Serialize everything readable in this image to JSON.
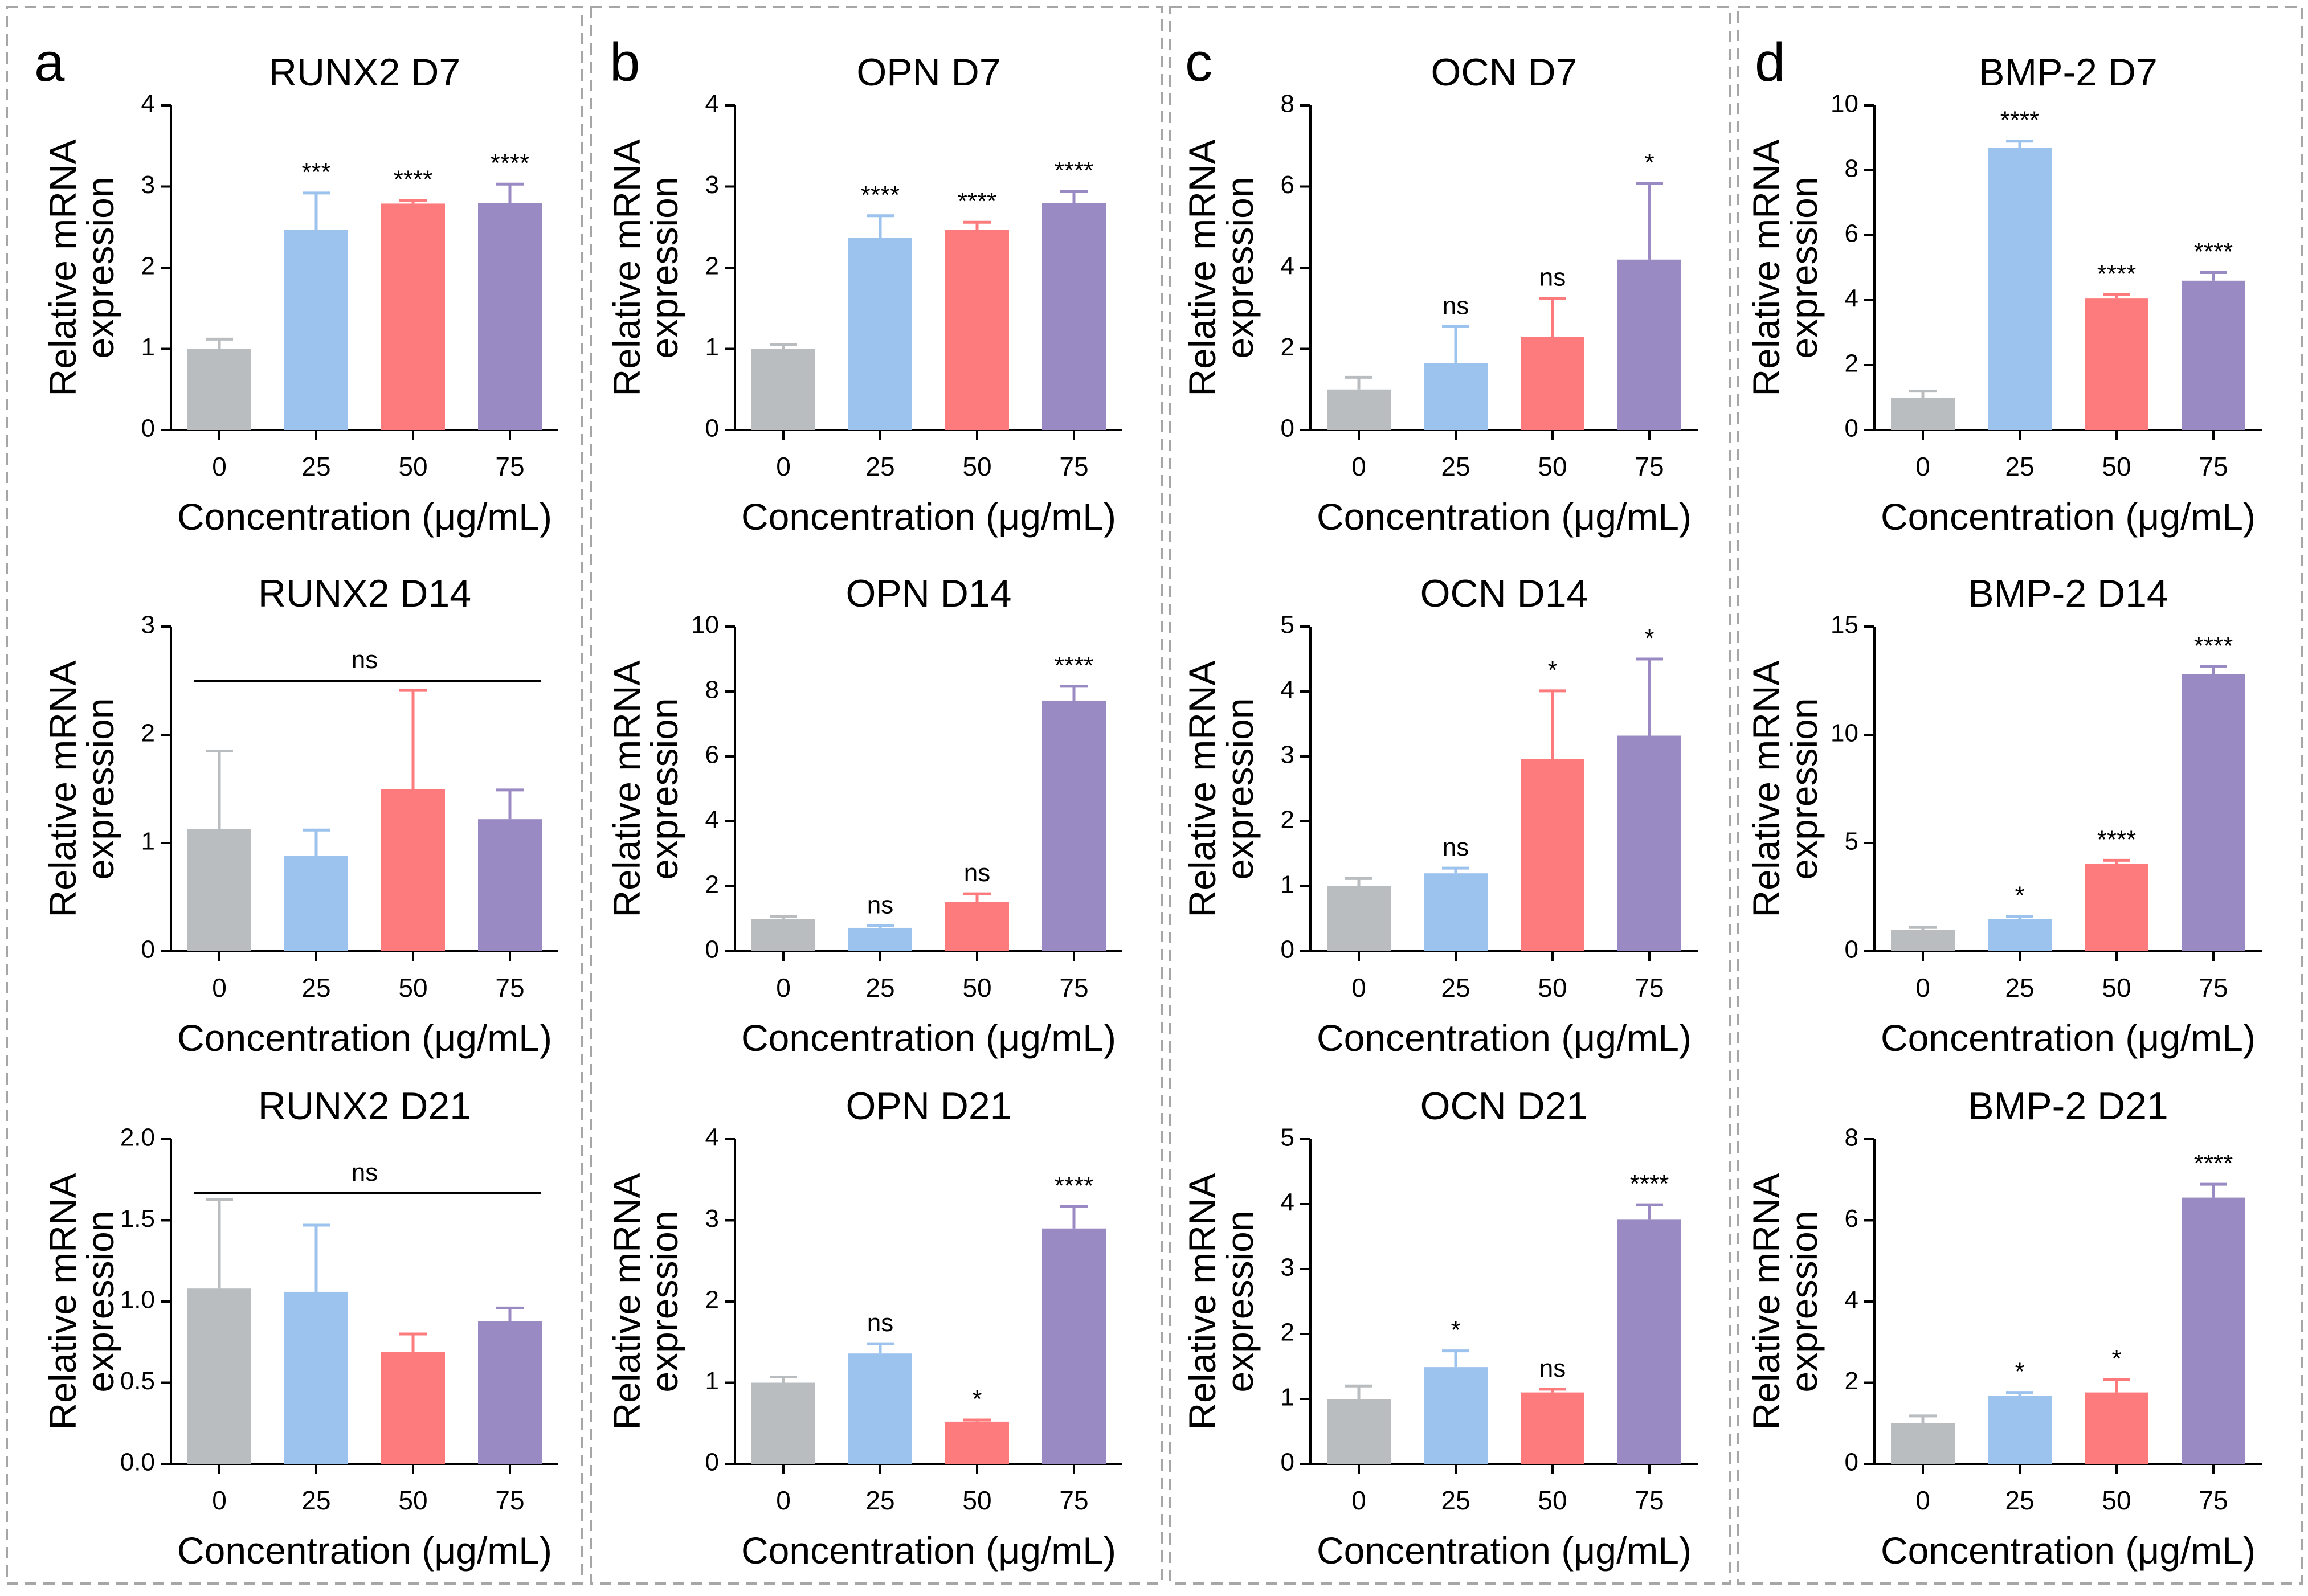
{
  "panels": [
    {
      "letter": "a"
    },
    {
      "letter": "b"
    },
    {
      "letter": "c"
    },
    {
      "letter": "d"
    }
  ],
  "colors": {
    "g0": "#babdbf",
    "g25": "#9cc2ee",
    "g50": "#fd7b7c",
    "g75": "#9a8ac3"
  },
  "chart_data": [
    {
      "type": "bar",
      "title": "RUNX2 D7",
      "categories": [
        "0",
        "25",
        "50",
        "75"
      ],
      "values": [
        1.0,
        2.47,
        2.79,
        2.8
      ],
      "errors": [
        0.12,
        0.45,
        0.04,
        0.23
      ],
      "sig": [
        "",
        "***",
        "****",
        "****"
      ],
      "ylim": [
        0,
        4
      ],
      "yticks": [
        "0",
        "1",
        "2",
        "3",
        "4"
      ],
      "xlabel": "Concentration (μg/mL)",
      "ylabel": [
        "Relative mRNA",
        "expression"
      ]
    },
    {
      "type": "bar",
      "title": "RUNX2 D14",
      "categories": [
        "0",
        "25",
        "50",
        "75"
      ],
      "values": [
        1.13,
        0.88,
        1.5,
        1.22
      ],
      "errors": [
        0.72,
        0.24,
        0.91,
        0.27
      ],
      "sig": [
        "",
        "",
        "",
        ""
      ],
      "bracket": "ns",
      "ylim": [
        0,
        3
      ],
      "yticks": [
        "0",
        "1",
        "2",
        "3"
      ],
      "xlabel": "Concentration (μg/mL)",
      "ylabel": [
        "Relative mRNA",
        "expression"
      ]
    },
    {
      "type": "bar",
      "title": "RUNX2 D21",
      "categories": [
        "0",
        "25",
        "50",
        "75"
      ],
      "values": [
        1.08,
        1.06,
        0.69,
        0.88
      ],
      "errors": [
        0.55,
        0.41,
        0.11,
        0.08
      ],
      "sig": [
        "",
        "",
        "",
        ""
      ],
      "bracket": "ns",
      "ylim": [
        0,
        2
      ],
      "yticks": [
        "0.0",
        "0.5",
        "1.0",
        "1.5",
        "2.0"
      ],
      "xlabel": "Concentration (μg/mL)",
      "ylabel": [
        "Relative mRNA",
        "expression"
      ]
    },
    {
      "type": "bar",
      "title": "OPN D7",
      "categories": [
        "0",
        "25",
        "50",
        "75"
      ],
      "values": [
        1.0,
        2.37,
        2.47,
        2.8
      ],
      "errors": [
        0.05,
        0.27,
        0.09,
        0.14
      ],
      "sig": [
        "",
        "****",
        "****",
        "****"
      ],
      "ylim": [
        0,
        4
      ],
      "yticks": [
        "0",
        "1",
        "2",
        "3",
        "4"
      ],
      "xlabel": "Concentration (μg/mL)",
      "ylabel": [
        "Relative mRNA",
        "expression"
      ]
    },
    {
      "type": "bar",
      "title": "OPN D14",
      "categories": [
        "0",
        "25",
        "50",
        "75"
      ],
      "values": [
        1.0,
        0.72,
        1.52,
        7.72
      ],
      "errors": [
        0.07,
        0.06,
        0.25,
        0.44
      ],
      "sig": [
        "",
        "ns",
        "ns",
        "****"
      ],
      "ylim": [
        0,
        10
      ],
      "yticks": [
        "0",
        "2",
        "4",
        "6",
        "8",
        "10"
      ],
      "xlabel": "Concentration (μg/mL)",
      "ylabel": [
        "Relative mRNA",
        "expression"
      ]
    },
    {
      "type": "bar",
      "title": "OPN D21",
      "categories": [
        "0",
        "25",
        "50",
        "75"
      ],
      "values": [
        1.0,
        1.36,
        0.52,
        2.9
      ],
      "errors": [
        0.07,
        0.12,
        0.02,
        0.27
      ],
      "sig": [
        "",
        "ns",
        "*",
        "****"
      ],
      "ylim": [
        0,
        4
      ],
      "yticks": [
        "0",
        "1",
        "2",
        "3",
        "4"
      ],
      "xlabel": "Concentration (μg/mL)",
      "ylabel": [
        "Relative mRNA",
        "expression"
      ]
    },
    {
      "type": "bar",
      "title": "OCN D7",
      "categories": [
        "0",
        "25",
        "50",
        "75"
      ],
      "values": [
        1.0,
        1.65,
        2.3,
        4.2
      ],
      "errors": [
        0.3,
        0.9,
        0.95,
        1.88
      ],
      "sig": [
        "",
        "ns",
        "ns",
        "*"
      ],
      "ylim": [
        0,
        8
      ],
      "yticks": [
        "0",
        "2",
        "4",
        "6",
        "8"
      ],
      "xlabel": "Concentration (μg/mL)",
      "ylabel": [
        "Relative mRNA",
        "expression"
      ]
    },
    {
      "type": "bar",
      "title": "OCN D14",
      "categories": [
        "0",
        "25",
        "50",
        "75"
      ],
      "values": [
        1.0,
        1.2,
        2.96,
        3.32
      ],
      "errors": [
        0.12,
        0.08,
        1.05,
        1.18
      ],
      "sig": [
        "",
        "ns",
        "*",
        "*"
      ],
      "ylim": [
        0,
        5
      ],
      "yticks": [
        "0",
        "1",
        "2",
        "3",
        "4",
        "5"
      ],
      "xlabel": "Concentration (μg/mL)",
      "ylabel": [
        "Relative mRNA",
        "expression"
      ]
    },
    {
      "type": "bar",
      "title": "OCN D21",
      "categories": [
        "0",
        "25",
        "50",
        "75"
      ],
      "values": [
        1.0,
        1.49,
        1.1,
        3.76
      ],
      "errors": [
        0.2,
        0.25,
        0.05,
        0.23
      ],
      "sig": [
        "",
        "*",
        "ns",
        "****"
      ],
      "ylim": [
        0,
        5
      ],
      "yticks": [
        "0",
        "1",
        "2",
        "3",
        "4",
        "5"
      ],
      "xlabel": "Concentration (μg/mL)",
      "ylabel": [
        "Relative mRNA",
        "expression"
      ]
    },
    {
      "type": "bar",
      "title": "BMP-2 D7",
      "categories": [
        "0",
        "25",
        "50",
        "75"
      ],
      "values": [
        1.0,
        8.7,
        4.05,
        4.6
      ],
      "errors": [
        0.2,
        0.2,
        0.12,
        0.25
      ],
      "sig": [
        "",
        "****",
        "****",
        "****"
      ],
      "ylim": [
        0,
        10
      ],
      "yticks": [
        "0",
        "2",
        "4",
        "6",
        "8",
        "10"
      ],
      "xlabel": "Concentration (μg/mL)",
      "ylabel": [
        "Relative mRNA",
        "expression"
      ]
    },
    {
      "type": "bar",
      "title": "BMP-2 D14",
      "categories": [
        "0",
        "25",
        "50",
        "75"
      ],
      "values": [
        1.0,
        1.5,
        4.05,
        12.8
      ],
      "errors": [
        0.1,
        0.12,
        0.15,
        0.35
      ],
      "sig": [
        "",
        "*",
        "****",
        "****"
      ],
      "ylim": [
        0,
        15
      ],
      "yticks": [
        "0",
        "5",
        "10",
        "15"
      ],
      "xlabel": "Concentration (μg/mL)",
      "ylabel": [
        "Relative mRNA",
        "expression"
      ]
    },
    {
      "type": "bar",
      "title": "BMP-2 D21",
      "categories": [
        "0",
        "25",
        "50",
        "75"
      ],
      "values": [
        1.0,
        1.68,
        1.76,
        6.56
      ],
      "errors": [
        0.18,
        0.08,
        0.32,
        0.33
      ],
      "sig": [
        "",
        "*",
        "*",
        "****"
      ],
      "ylim": [
        0,
        8
      ],
      "yticks": [
        "0",
        "2",
        "4",
        "6",
        "8"
      ],
      "xlabel": "Concentration (μg/mL)",
      "ylabel": [
        "Relative mRNA",
        "expression"
      ]
    }
  ]
}
